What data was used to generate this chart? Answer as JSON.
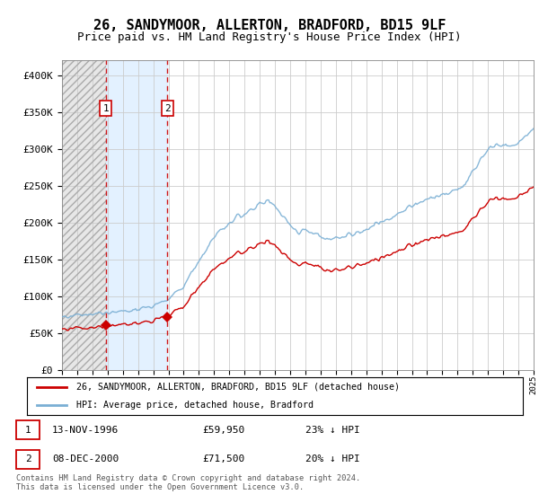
{
  "title": "26, SANDYMOOR, ALLERTON, BRADFORD, BD15 9LF",
  "subtitle": "Price paid vs. HM Land Registry's House Price Index (HPI)",
  "title_fontsize": 11,
  "subtitle_fontsize": 9,
  "sale1_date": "13-NOV-1996",
  "sale1_price": 59950,
  "sale1_year": 1996.87,
  "sale2_date": "08-DEC-2000",
  "sale2_price": 71500,
  "sale2_year": 2000.93,
  "legend_label_red": "26, SANDYMOOR, ALLERTON, BRADFORD, BD15 9LF (detached house)",
  "legend_label_blue": "HPI: Average price, detached house, Bradford",
  "footer": "Contains HM Land Registry data © Crown copyright and database right 2024.\nThis data is licensed under the Open Government Licence v3.0.",
  "xlim": [
    1994,
    2025
  ],
  "ylim": [
    0,
    420000
  ],
  "red_color": "#cc0000",
  "blue_color": "#7aafd4",
  "background_color": "#ffffff",
  "grid_color": "#cccccc",
  "hatch_color": "#d8d8d8",
  "highlight_color": "#ddeeff"
}
